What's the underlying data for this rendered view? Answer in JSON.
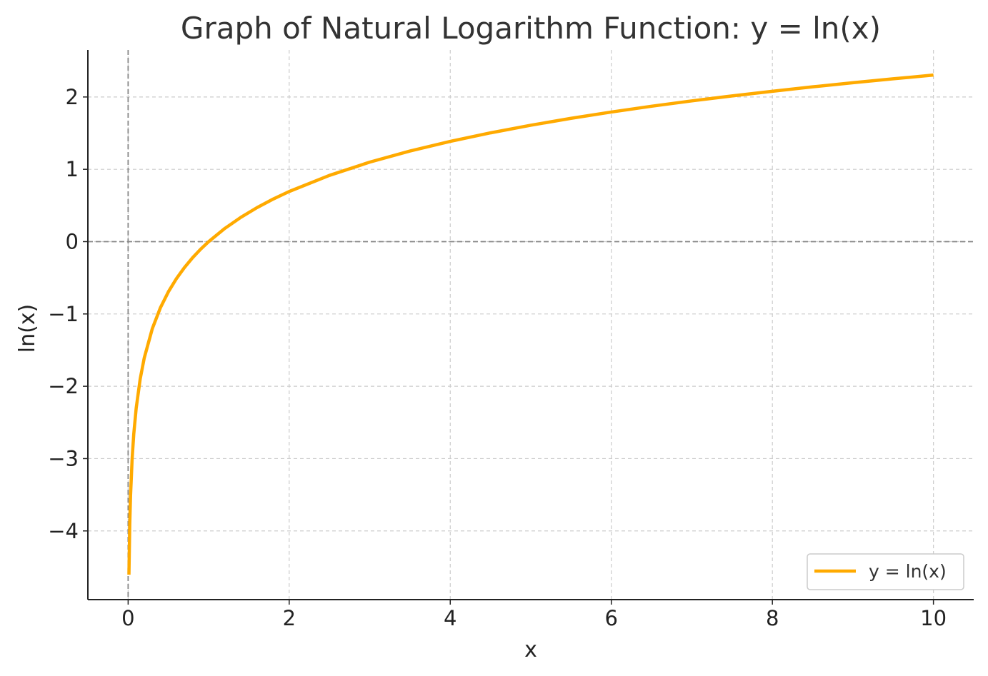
{
  "chart_data": {
    "type": "line",
    "title": "Graph of Natural Logarithm Function: y = ln(x)",
    "xlabel": "x",
    "ylabel": "ln(x)",
    "xlim": [
      -0.5,
      10.5
    ],
    "ylim": [
      -4.95,
      2.65
    ],
    "x_ticks": [
      0,
      2,
      4,
      6,
      8,
      10
    ],
    "y_ticks": [
      -4,
      -3,
      -2,
      -1,
      0,
      1,
      2
    ],
    "x_tick_labels": [
      "0",
      "2",
      "4",
      "6",
      "8",
      "10"
    ],
    "y_tick_labels": [
      "−4",
      "−3",
      "−2",
      "−1",
      "0",
      "1",
      "2"
    ],
    "grid": true,
    "reference_lines": {
      "x": 0,
      "y": 0
    },
    "legend_position": "lower-right",
    "series": [
      {
        "name": "y = ln(x)",
        "color": "#FFAA00",
        "x": [
          0.01,
          0.02,
          0.03,
          0.05,
          0.07,
          0.1,
          0.15,
          0.2,
          0.3,
          0.4,
          0.5,
          0.6,
          0.7,
          0.8,
          0.9,
          1.0,
          1.2,
          1.4,
          1.6,
          1.8,
          2.0,
          2.5,
          3.0,
          3.5,
          4.0,
          4.5,
          5.0,
          5.5,
          6.0,
          6.5,
          7.0,
          7.5,
          8.0,
          8.5,
          9.0,
          9.5,
          10.0
        ],
        "y": [
          -4.605,
          -3.912,
          -3.507,
          -2.996,
          -2.659,
          -2.303,
          -1.897,
          -1.609,
          -1.204,
          -0.916,
          -0.693,
          -0.511,
          -0.357,
          -0.223,
          -0.105,
          0.0,
          0.182,
          0.336,
          0.47,
          0.588,
          0.693,
          0.916,
          1.099,
          1.253,
          1.386,
          1.504,
          1.609,
          1.705,
          1.792,
          1.872,
          1.946,
          2.015,
          2.079,
          2.14,
          2.197,
          2.251,
          2.303
        ]
      }
    ]
  }
}
